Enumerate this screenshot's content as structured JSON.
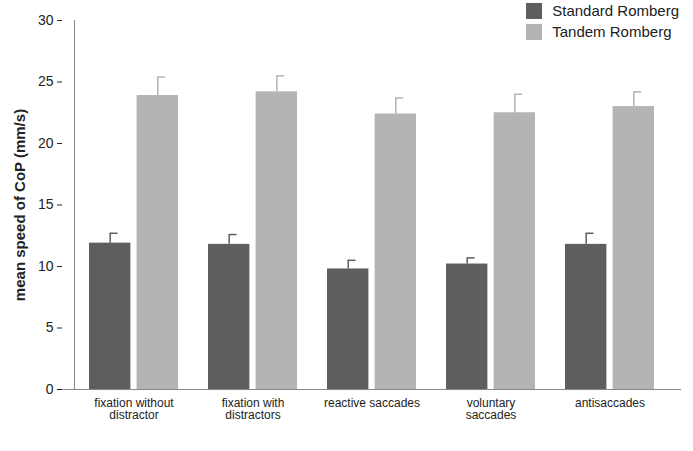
{
  "chart_data": {
    "type": "bar",
    "categories": [
      "fixation without distractor",
      "fixation with distractors",
      "reactive saccades",
      "voluntary saccades",
      "antisaccades"
    ],
    "series": [
      {
        "name": "Standard Romberg",
        "color": "#5e5e5e",
        "values": [
          11.9,
          11.8,
          9.8,
          10.2,
          11.8
        ],
        "errors": [
          0.8,
          0.8,
          0.7,
          0.5,
          0.9
        ]
      },
      {
        "name": "Tandem Romberg",
        "color": "#b4b4b4",
        "values": [
          23.9,
          24.2,
          22.4,
          22.5,
          23.0
        ],
        "errors": [
          1.5,
          1.3,
          1.3,
          1.5,
          1.2
        ]
      }
    ],
    "y_label": "mean speed of CoP (mm/s)",
    "ylim": [
      0,
      30
    ],
    "yticks": [
      0,
      5,
      10,
      15,
      20,
      25,
      30
    ],
    "grid": false,
    "legend": "top-right"
  }
}
